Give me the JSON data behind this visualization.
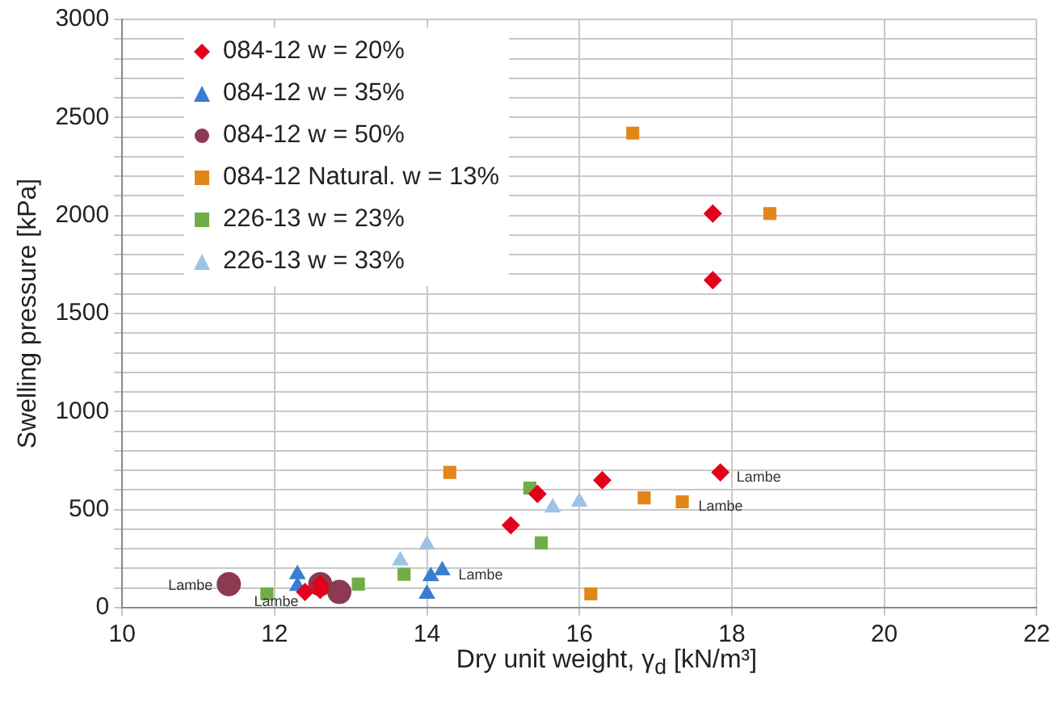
{
  "chart_data": {
    "type": "scatter",
    "xlabel": "Dry unit weight, γ$_{d}$ [kN/m³]",
    "ylabel": "Swelling pressure [kPa]",
    "xlim": [
      10,
      22
    ],
    "xticks": [
      10,
      12,
      14,
      16,
      18,
      20,
      22
    ],
    "ylim": [
      0,
      3000
    ],
    "yticks": [
      0,
      {
        "value": 100,
        "label": null
      },
      {
        "value": 200,
        "label": null
      },
      {
        "value": 300,
        "label": null
      },
      {
        "value": 400,
        "label": null
      },
      500,
      {
        "value": 600,
        "label": null
      },
      {
        "value": 700,
        "label": null
      },
      {
        "value": 800,
        "label": null
      },
      {
        "value": 900,
        "label": null
      },
      1000,
      {
        "value": 1100,
        "label": null
      },
      {
        "value": 1200,
        "label": null
      },
      {
        "value": 1300,
        "label": null
      },
      {
        "value": 1400,
        "label": null
      },
      1500,
      {
        "value": 1600,
        "label": null
      },
      {
        "value": 1700,
        "label": null
      },
      {
        "value": 1800,
        "label": null
      },
      {
        "value": 1900,
        "label": null
      },
      2000,
      {
        "value": 2100,
        "label": null
      },
      {
        "value": 2200,
        "label": null
      },
      {
        "value": 2300,
        "label": null
      },
      {
        "value": 2400,
        "label": null
      },
      2500,
      {
        "value": 2600,
        "label": null
      },
      {
        "value": 2700,
        "label": null
      },
      {
        "value": 2800,
        "label": null
      },
      {
        "value": 2900,
        "label": null
      },
      3000
    ],
    "grid": true,
    "legend": "top left",
    "series": [
      {
        "name": "084-12 w = 20%",
        "color": "#e3001b",
        "marker": "diamond",
        "x": [
          12.4,
          12.6,
          12.6,
          15.1,
          15.45,
          16.3,
          17.75,
          17.75,
          17.85
        ],
        "values": [
          80,
          120,
          90,
          420,
          580,
          650,
          2010,
          1670,
          690
        ]
      },
      {
        "name": "084-12 w = 35%",
        "color": "#3a7dd0",
        "marker": "triangle",
        "x": [
          12.3,
          12.3,
          14.0,
          14.05,
          14.2
        ],
        "values": [
          170,
          110,
          70,
          160,
          190
        ]
      },
      {
        "name": "084-12 w = 50%",
        "color": "#8b3a52",
        "marker": "circle",
        "x": [
          11.4,
          12.6,
          12.85
        ],
        "values": [
          120,
          120,
          80
        ]
      },
      {
        "name": "084-12 Natural. w = 13%",
        "color": "#e3861a",
        "marker": "square",
        "x": [
          16.7,
          18.5,
          14.3,
          16.15,
          16.85,
          17.35
        ],
        "values": [
          2420,
          2010,
          690,
          70,
          560,
          540
        ]
      },
      {
        "name": "226-13 w = 23%",
        "color": "#70ad47",
        "marker": "square",
        "x": [
          11.9,
          13.1,
          13.7,
          15.35,
          15.5
        ],
        "values": [
          70,
          120,
          170,
          610,
          330
        ]
      },
      {
        "name": "226-13 w = 33%",
        "color": "#9dc3e6",
        "marker": "triangle",
        "x": [
          13.65,
          14.0,
          15.65,
          16.0
        ],
        "values": [
          240,
          320,
          510,
          540
        ]
      }
    ],
    "annotations": [
      {
        "text": "Lambe",
        "x": 11.4,
        "y": 120
      },
      {
        "text": "Lambe",
        "x": 12.4,
        "y": 80
      },
      {
        "text": "Lambe",
        "x": 14.2,
        "y": 190
      },
      {
        "text": "Lambe",
        "x": 17.85,
        "y": 690
      },
      {
        "text": "Lambe",
        "x": 17.35,
        "y": 540
      }
    ]
  }
}
